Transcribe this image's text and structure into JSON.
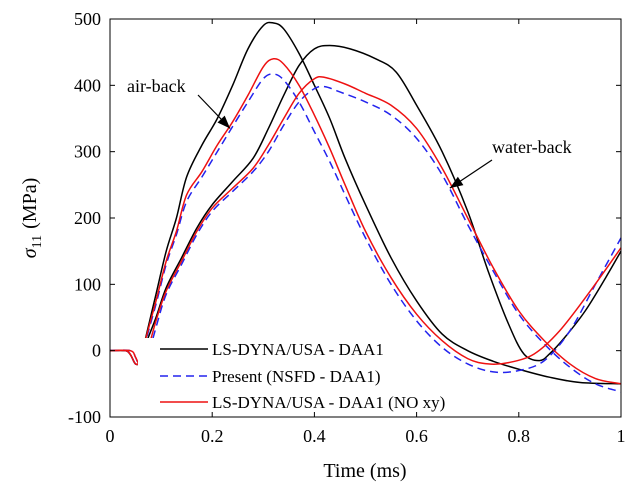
{
  "chart_data": {
    "type": "line",
    "title": "",
    "xlabel": "Time (ms)",
    "ylabel_symbol": "σ",
    "ylabel_sub": "11",
    "ylabel_unit": "(MPa)",
    "xlim": [
      0,
      1
    ],
    "ylim": [
      -100,
      500
    ],
    "xticks": [
      0,
      0.2,
      0.4,
      0.6,
      0.8,
      1
    ],
    "yticks": [
      -100,
      0,
      100,
      200,
      300,
      400,
      500
    ],
    "xtick_labels": [
      "0",
      "0.2",
      "0.4",
      "0.6",
      "0.8",
      "1"
    ],
    "ytick_labels": [
      "-100",
      "0",
      "100",
      "200",
      "300",
      "400",
      "500"
    ],
    "grid": false,
    "legend_position": "bottom-left",
    "annotations": [
      {
        "text": "air-back",
        "x": 0.235,
        "y": 335
      },
      {
        "text": "water-back",
        "x": 0.665,
        "y": 245
      }
    ],
    "series": [
      {
        "name": "LS-DYNA/USA - DAA1",
        "color": "#000000",
        "dash": "solid",
        "curves": [
          [
            [
              0,
              0
            ],
            [
              0.03,
              0
            ],
            [
              0.04,
              -6
            ],
            [
              0.05,
              -20
            ],
            [
              0.06,
              -15
            ],
            [
              0.07,
              20
            ],
            [
              0.09,
              85
            ],
            [
              0.11,
              150
            ],
            [
              0.13,
              200
            ],
            [
              0.15,
              262
            ],
            [
              0.18,
              310
            ],
            [
              0.21,
              350
            ],
            [
              0.24,
              400
            ],
            [
              0.27,
              455
            ],
            [
              0.3,
              490
            ],
            [
              0.32,
              494
            ],
            [
              0.34,
              485
            ],
            [
              0.37,
              448
            ],
            [
              0.4,
              400
            ],
            [
              0.43,
              350
            ],
            [
              0.46,
              290
            ],
            [
              0.5,
              220
            ],
            [
              0.55,
              140
            ],
            [
              0.6,
              75
            ],
            [
              0.65,
              25
            ],
            [
              0.7,
              0
            ],
            [
              0.75,
              -16
            ],
            [
              0.8,
              -28
            ],
            [
              0.86,
              -40
            ],
            [
              0.92,
              -48
            ],
            [
              1.0,
              -50
            ]
          ],
          [
            [
              0,
              0
            ],
            [
              0.03,
              0
            ],
            [
              0.04,
              -6
            ],
            [
              0.05,
              -20
            ],
            [
              0.06,
              -15
            ],
            [
              0.07,
              10
            ],
            [
              0.09,
              50
            ],
            [
              0.11,
              95
            ],
            [
              0.14,
              140
            ],
            [
              0.17,
              185
            ],
            [
              0.2,
              220
            ],
            [
              0.24,
              255
            ],
            [
              0.28,
              290
            ],
            [
              0.31,
              335
            ],
            [
              0.34,
              385
            ],
            [
              0.37,
              430
            ],
            [
              0.4,
              455
            ],
            [
              0.43,
              460
            ],
            [
              0.47,
              455
            ],
            [
              0.52,
              440
            ],
            [
              0.56,
              420
            ],
            [
              0.6,
              370
            ],
            [
              0.65,
              300
            ],
            [
              0.7,
              210
            ],
            [
              0.74,
              120
            ],
            [
              0.78,
              40
            ],
            [
              0.81,
              -5
            ],
            [
              0.84,
              -15
            ],
            [
              0.86,
              -5
            ],
            [
              0.89,
              20
            ],
            [
              0.93,
              60
            ],
            [
              0.97,
              110
            ],
            [
              1.0,
              150
            ]
          ]
        ]
      },
      {
        "name": "Present (NSFD - DAA1)",
        "color": "#2323ee",
        "dash": "dashed",
        "curves": [
          [
            [
              0,
              0
            ],
            [
              0.03,
              0
            ],
            [
              0.04,
              -6
            ],
            [
              0.05,
              -20
            ],
            [
              0.06,
              -15
            ],
            [
              0.07,
              15
            ],
            [
              0.09,
              70
            ],
            [
              0.11,
              130
            ],
            [
              0.13,
              175
            ],
            [
              0.15,
              225
            ],
            [
              0.18,
              262
            ],
            [
              0.21,
              300
            ],
            [
              0.24,
              338
            ],
            [
              0.27,
              375
            ],
            [
              0.3,
              410
            ],
            [
              0.32,
              417
            ],
            [
              0.34,
              408
            ],
            [
              0.37,
              375
            ],
            [
              0.4,
              330
            ],
            [
              0.43,
              285
            ],
            [
              0.46,
              235
            ],
            [
              0.5,
              170
            ],
            [
              0.55,
              100
            ],
            [
              0.6,
              45
            ],
            [
              0.65,
              5
            ],
            [
              0.7,
              -20
            ],
            [
              0.75,
              -32
            ],
            [
              0.8,
              -30
            ],
            [
              0.85,
              -15
            ],
            [
              0.9,
              30
            ],
            [
              0.95,
              100
            ],
            [
              1.0,
              170
            ]
          ],
          [
            [
              0,
              0
            ],
            [
              0.04,
              0
            ],
            [
              0.05,
              -10
            ],
            [
              0.06,
              -28
            ],
            [
              0.07,
              -20
            ],
            [
              0.09,
              35
            ],
            [
              0.11,
              85
            ],
            [
              0.14,
              130
            ],
            [
              0.17,
              175
            ],
            [
              0.2,
              210
            ],
            [
              0.24,
              240
            ],
            [
              0.28,
              270
            ],
            [
              0.31,
              300
            ],
            [
              0.34,
              340
            ],
            [
              0.37,
              375
            ],
            [
              0.4,
              395
            ],
            [
              0.42,
              398
            ],
            [
              0.45,
              390
            ],
            [
              0.5,
              375
            ],
            [
              0.55,
              355
            ],
            [
              0.6,
              320
            ],
            [
              0.65,
              265
            ],
            [
              0.7,
              190
            ],
            [
              0.75,
              120
            ],
            [
              0.8,
              55
            ],
            [
              0.85,
              10
            ],
            [
              0.9,
              -25
            ],
            [
              0.95,
              -50
            ],
            [
              1.0,
              -62
            ]
          ]
        ]
      },
      {
        "name": "LS-DYNA/USA - DAA1 (NO xy)",
        "color": "#ee1111",
        "dash": "solid",
        "curves": [
          [
            [
              0,
              0
            ],
            [
              0.03,
              0
            ],
            [
              0.04,
              -6
            ],
            [
              0.05,
              -20
            ],
            [
              0.06,
              -15
            ],
            [
              0.07,
              18
            ],
            [
              0.09,
              75
            ],
            [
              0.11,
              135
            ],
            [
              0.13,
              180
            ],
            [
              0.15,
              235
            ],
            [
              0.18,
              270
            ],
            [
              0.21,
              310
            ],
            [
              0.24,
              345
            ],
            [
              0.27,
              385
            ],
            [
              0.3,
              428
            ],
            [
              0.32,
              440
            ],
            [
              0.34,
              432
            ],
            [
              0.37,
              400
            ],
            [
              0.4,
              355
            ],
            [
              0.43,
              305
            ],
            [
              0.46,
              250
            ],
            [
              0.5,
              180
            ],
            [
              0.55,
              110
            ],
            [
              0.6,
              55
            ],
            [
              0.65,
              15
            ],
            [
              0.7,
              -12
            ],
            [
              0.74,
              -20
            ],
            [
              0.78,
              -18
            ],
            [
              0.83,
              -5
            ],
            [
              0.88,
              30
            ],
            [
              0.94,
              90
            ],
            [
              1.0,
              155
            ]
          ],
          [
            [
              0,
              0
            ],
            [
              0.04,
              0
            ],
            [
              0.05,
              -10
            ],
            [
              0.06,
              -24
            ],
            [
              0.07,
              -10
            ],
            [
              0.09,
              45
            ],
            [
              0.11,
              90
            ],
            [
              0.14,
              135
            ],
            [
              0.17,
              180
            ],
            [
              0.2,
              215
            ],
            [
              0.24,
              245
            ],
            [
              0.28,
              275
            ],
            [
              0.31,
              310
            ],
            [
              0.34,
              350
            ],
            [
              0.37,
              388
            ],
            [
              0.4,
              410
            ],
            [
              0.42,
              412
            ],
            [
              0.46,
              402
            ],
            [
              0.5,
              388
            ],
            [
              0.55,
              370
            ],
            [
              0.6,
              335
            ],
            [
              0.65,
              275
            ],
            [
              0.7,
              200
            ],
            [
              0.75,
              125
            ],
            [
              0.8,
              60
            ],
            [
              0.85,
              15
            ],
            [
              0.9,
              -20
            ],
            [
              0.95,
              -42
            ],
            [
              1.0,
              -50
            ]
          ]
        ]
      }
    ]
  }
}
